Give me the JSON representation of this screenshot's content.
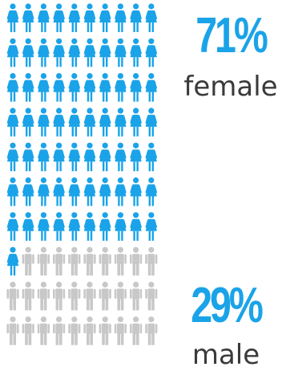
{
  "chart_data": {
    "type": "pictograph",
    "total_icons": 100,
    "columns": 10,
    "series": [
      {
        "name": "female",
        "percent_label": "71%",
        "label": "female",
        "value": 71,
        "icon": "female-person-icon",
        "color": "#1aa3e8"
      },
      {
        "name": "male",
        "percent_label": "29%",
        "label": "male",
        "value": 29,
        "icon": "male-person-icon",
        "color": "#c8c8c8"
      }
    ]
  }
}
